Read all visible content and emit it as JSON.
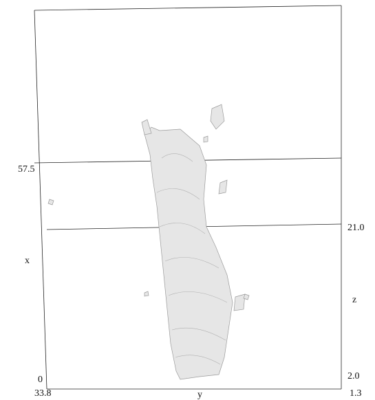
{
  "axes": {
    "x": {
      "label": "x",
      "ticks": [
        "0",
        "57.5"
      ]
    },
    "y": {
      "label": "y",
      "ticks": [
        "33.8",
        "1.3"
      ]
    },
    "z": {
      "label": "z",
      "ticks": [
        "2.0",
        "21.0"
      ]
    }
  }
}
